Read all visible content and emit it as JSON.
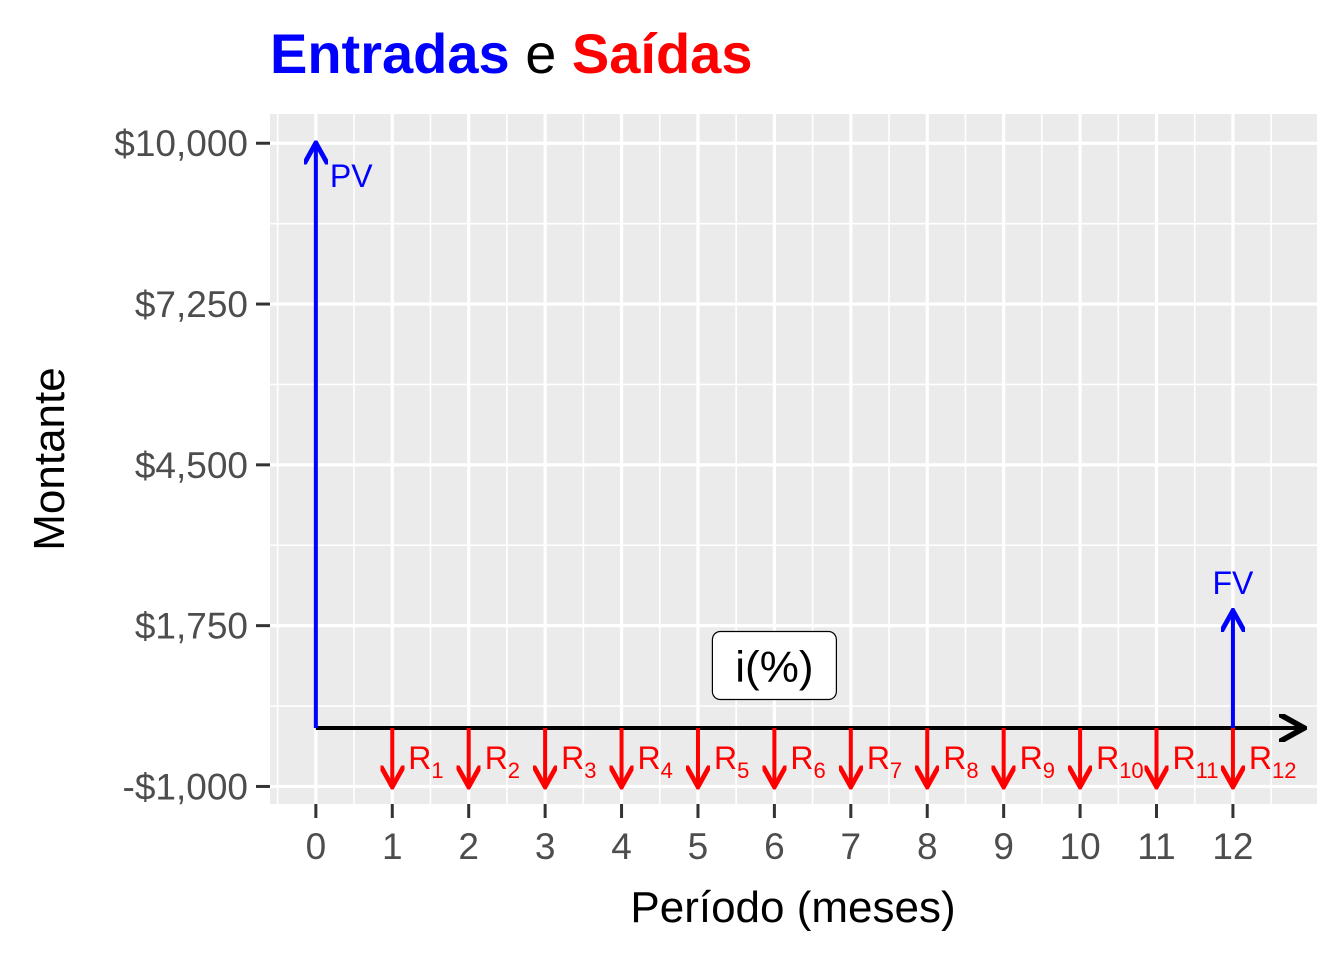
{
  "chart_data": {
    "type": "cash-flow",
    "title_parts": [
      {
        "text": "Entradas",
        "color": "#0000ff",
        "bold": true
      },
      {
        "text": " e ",
        "color": "#000000",
        "bold": false
      },
      {
        "text": "Saídas",
        "color": "#ff0000",
        "bold": true
      }
    ],
    "xlabel": "Período (meses)",
    "ylabel": "Montante",
    "x_ticks": [
      "0",
      "1",
      "2",
      "3",
      "4",
      "5",
      "6",
      "7",
      "8",
      "9",
      "10",
      "11",
      "12"
    ],
    "y_ticks": [
      {
        "value": 10000,
        "label": "$10,000"
      },
      {
        "value": 7250,
        "label": "$7,250"
      },
      {
        "value": 4500,
        "label": "$4,500"
      },
      {
        "value": 1750,
        "label": "$1,750"
      },
      {
        "value": -1000,
        "label": "-$1,000"
      }
    ],
    "xlim": [
      -0.6,
      13.1
    ],
    "ylim": [
      -1300,
      10500
    ],
    "grid": true,
    "inflows": [
      {
        "x": 0,
        "y": 10000,
        "label": "PV"
      },
      {
        "x": 12,
        "y": 2000,
        "label": "FV"
      }
    ],
    "outflows": [
      {
        "x": 1,
        "y": -1000,
        "label": "R",
        "sub": "1"
      },
      {
        "x": 2,
        "y": -1000,
        "label": "R",
        "sub": "2"
      },
      {
        "x": 3,
        "y": -1000,
        "label": "R",
        "sub": "3"
      },
      {
        "x": 4,
        "y": -1000,
        "label": "R",
        "sub": "4"
      },
      {
        "x": 5,
        "y": -1000,
        "label": "R",
        "sub": "5"
      },
      {
        "x": 6,
        "y": -1000,
        "label": "R",
        "sub": "6"
      },
      {
        "x": 7,
        "y": -1000,
        "label": "R",
        "sub": "7"
      },
      {
        "x": 8,
        "y": -1000,
        "label": "R",
        "sub": "8"
      },
      {
        "x": 9,
        "y": -1000,
        "label": "R",
        "sub": "9"
      },
      {
        "x": 10,
        "y": -1000,
        "label": "R",
        "sub": "10"
      },
      {
        "x": 11,
        "y": -1000,
        "label": "R",
        "sub": "11"
      },
      {
        "x": 12,
        "y": -1000,
        "label": "R",
        "sub": "12"
      }
    ],
    "rate_label": {
      "text": "i(%)",
      "x": 6,
      "y": 1000
    },
    "timeline": {
      "from": 0,
      "to": 13
    },
    "colors": {
      "inflow": "#0000ff",
      "outflow": "#ff0000",
      "timeline": "#000000",
      "panel": "#ebebeb",
      "tick": "#4d4d4d"
    }
  }
}
